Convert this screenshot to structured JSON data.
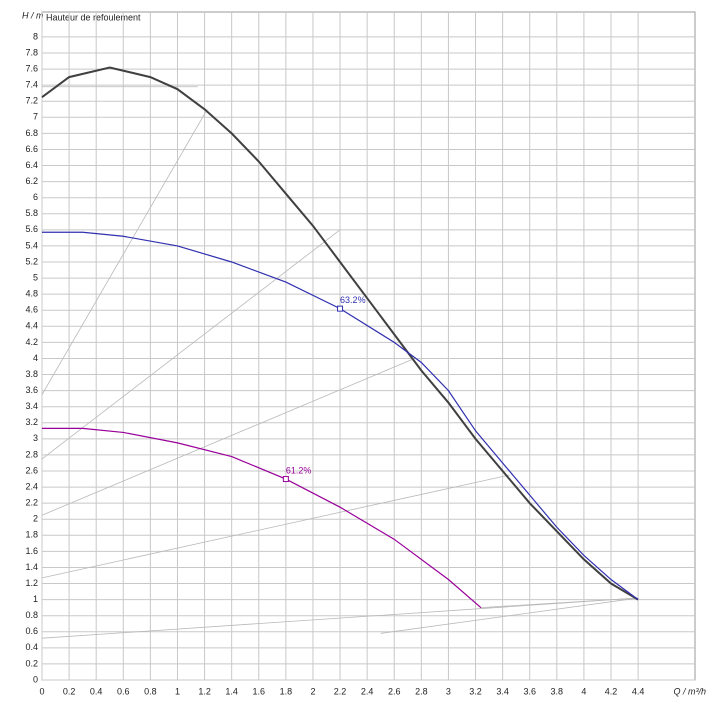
{
  "chart_data": {
    "type": "line",
    "subtitle": "Hauteur de refoulement",
    "ylabel": "H / m",
    "xlabel": "Q / m³/h",
    "xlim": [
      0,
      4.82
    ],
    "ylim": [
      0,
      8.31
    ],
    "xticks": [
      0,
      0.2,
      0.4,
      0.6,
      0.8,
      1,
      1.2,
      1.4,
      1.6,
      1.8,
      2,
      2.2,
      2.4,
      2.6,
      2.8,
      3,
      3.2,
      3.4,
      3.6,
      3.8,
      4,
      4.2,
      4.4
    ],
    "yticks": [
      0,
      0.2,
      0.4,
      0.6,
      0.8,
      1,
      1.2,
      1.4,
      1.6,
      1.8,
      2,
      2.2,
      2.4,
      2.6,
      2.8,
      3,
      3.2,
      3.4,
      3.6,
      3.8,
      4,
      4.2,
      4.4,
      4.6,
      4.8,
      5,
      5.2,
      5.4,
      5.6,
      5.8,
      6,
      6.2,
      6.4,
      6.6,
      6.8,
      7,
      7.2,
      7.4,
      7.6,
      7.8,
      8
    ],
    "grid": true,
    "series": [
      {
        "color": "#404040",
        "x": [
          0,
          0.2,
          0.5,
          0.8,
          1.0,
          1.2,
          1.4,
          1.6,
          1.8,
          2.0,
          2.2,
          2.4,
          2.6,
          2.8,
          3.0,
          3.2,
          3.4,
          3.6,
          3.8,
          4.0,
          4.2,
          4.4
        ],
        "values": [
          7.25,
          7.5,
          7.62,
          7.5,
          7.35,
          7.1,
          6.8,
          6.45,
          6.05,
          5.65,
          5.2,
          4.75,
          4.3,
          3.85,
          3.45,
          3.0,
          2.6,
          2.2,
          1.85,
          1.5,
          1.2,
          1.0
        ]
      },
      {
        "color": "#3030b0",
        "x": [
          0,
          0.3,
          0.6,
          1.0,
          1.4,
          1.8,
          2.2,
          2.6,
          2.8,
          3.0,
          3.2,
          3.4,
          3.6,
          3.8,
          4.0,
          4.2,
          4.4
        ],
        "values": [
          5.57,
          5.57,
          5.52,
          5.4,
          5.2,
          4.95,
          4.62,
          4.2,
          3.95,
          3.6,
          3.1,
          2.7,
          2.3,
          1.9,
          1.55,
          1.25,
          1.0
        ]
      },
      {
        "color": "#990099",
        "x": [
          0,
          0.3,
          0.6,
          1.0,
          1.4,
          1.8,
          2.2,
          2.6,
          3.0,
          3.24
        ],
        "values": [
          3.13,
          3.13,
          3.08,
          2.95,
          2.78,
          2.5,
          2.15,
          1.75,
          1.25,
          0.9
        ]
      }
    ],
    "efficiency_points": [
      {
        "x": 2.2,
        "y": 4.62,
        "value": 63.2,
        "value_label": "63.2%",
        "color": "#3030b0"
      },
      {
        "x": 1.8,
        "y": 2.5,
        "value": 61.2,
        "value_label": "61.2%",
        "color": "#990099"
      }
    ],
    "reference_lines": [
      {
        "x": [
          0,
          1.22
        ],
        "values": [
          3.55,
          7.1
        ]
      },
      {
        "x": [
          0,
          1.15
        ],
        "values": [
          7.38,
          7.38
        ]
      },
      {
        "x": [
          0,
          2.2
        ],
        "values": [
          2.75,
          5.6
        ]
      },
      {
        "x": [
          0,
          2.75
        ],
        "values": [
          2.05,
          4.0
        ]
      },
      {
        "x": [
          0,
          3.45
        ],
        "values": [
          1.27,
          2.55
        ]
      },
      {
        "x": [
          0,
          4.4
        ],
        "values": [
          0.52,
          1.02
        ]
      },
      {
        "x": [
          2.5,
          4.4
        ],
        "values": [
          0.58,
          1.02
        ]
      },
      {
        "x": [
          3.24,
          4.4
        ],
        "values": [
          0.9,
          1.02
        ]
      }
    ]
  }
}
